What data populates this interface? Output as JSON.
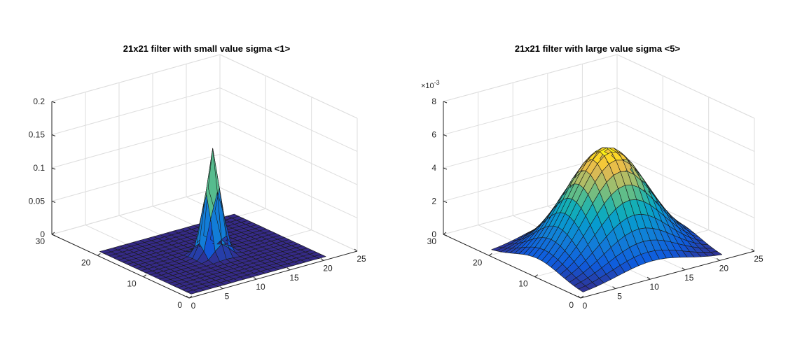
{
  "chart_data": [
    {
      "type": "surface",
      "title": "21x21 filter with small value sigma <1>",
      "filter_size": [
        21,
        21
      ],
      "sigma": 1,
      "peak_value": 0.159,
      "xlim": [
        0,
        25
      ],
      "ylim": [
        0,
        30
      ],
      "zlim": [
        0,
        0.2
      ],
      "xticks": [
        "0",
        "5",
        "10",
        "15",
        "20",
        "25"
      ],
      "yticks": [
        "0",
        "10",
        "20",
        "30"
      ],
      "zticks": [
        "0",
        "0.05",
        "0.1",
        "0.15",
        "0.2"
      ],
      "z_exponent_label": "",
      "colormap": "parula",
      "grid": true
    },
    {
      "type": "surface",
      "title": "21x21 filter with large value sigma <5>",
      "filter_size": [
        21,
        21
      ],
      "sigma": 5,
      "peak_value": 0.0064,
      "xlim": [
        0,
        25
      ],
      "ylim": [
        0,
        30
      ],
      "zlim": [
        0,
        0.008
      ],
      "xticks": [
        "0",
        "5",
        "10",
        "15",
        "20",
        "25"
      ],
      "yticks": [
        "0",
        "10",
        "20",
        "30"
      ],
      "zticks": [
        "0",
        "2",
        "4",
        "6",
        "8"
      ],
      "z_exponent_label": "×10",
      "z_exponent_power": "-3",
      "colormap": "parula",
      "grid": true
    }
  ]
}
